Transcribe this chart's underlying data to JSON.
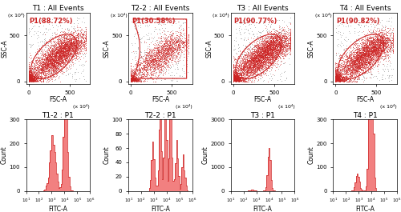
{
  "scatter_titles": [
    "T1 : All Events",
    "T2-2 : All Events",
    "T3 : All Events",
    "T4 : All Events"
  ],
  "hist_titles": [
    "T1-2 : P1",
    "T2-2 : P1",
    "T3 : P1",
    "T4 : P1"
  ],
  "gate_labels": [
    "P1(88.72%)",
    "P1(30.58%)",
    "P1(90.77%)",
    "P1(90.82%)"
  ],
  "scatter_xlabel": "FSC-A",
  "scatter_ylabel": "SSC-A",
  "scatter_xunit": "(x 10⁴)",
  "scatter_yunit": "(x 10⁴)",
  "hist_xlabel": "FITC-A",
  "hist_ylabel": "Count",
  "scatter_xlim": [
    -30,
    750
  ],
  "scatter_ylim": [
    -30,
    750
  ],
  "hist_xlim_log": [
    10.0,
    1000000.0
  ],
  "dot_color_inner": "#cc2222",
  "dot_color_outer": "#999999",
  "gate_color": "#cc2222",
  "hist_fill_color": "#f28080",
  "hist_edge_color": "#cc2222",
  "background_color": "#ffffff",
  "title_fontsize": 6.5,
  "label_fontsize": 5.5,
  "tick_fontsize": 5,
  "gate_label_fontsize": 6,
  "hist_ylims": [
    300,
    100,
    3000,
    300
  ],
  "hist_yticks_1": [
    0,
    100,
    200,
    300
  ],
  "hist_yticks_2": [
    0,
    20,
    40,
    60,
    80,
    100
  ],
  "hist_yticks_3": [
    0,
    1000,
    2000,
    3000
  ],
  "hist_yticks_4": [
    0,
    100,
    200,
    300
  ]
}
